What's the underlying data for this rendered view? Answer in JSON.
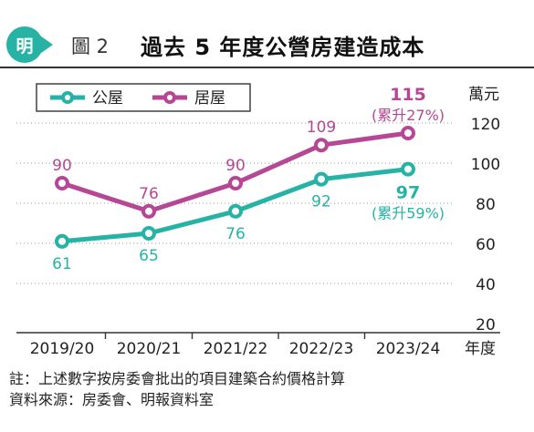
{
  "header": {
    "badge": "明",
    "figure_label": "圖 2",
    "title": "過去 5 年度公營房建造成本"
  },
  "chart_data": {
    "type": "line",
    "categories": [
      "2019/20",
      "2020/21",
      "2021/22",
      "2022/23",
      "2023/24"
    ],
    "xlabel": "年度",
    "ylabel": "萬元",
    "ylim": [
      20,
      120
    ],
    "yticks": [
      20,
      40,
      60,
      80,
      100,
      120
    ],
    "grid": true,
    "legend_position": "top-left",
    "series": [
      {
        "name": "公屋",
        "color": "#26b3a6",
        "values": [
          61,
          65,
          76,
          92,
          97
        ],
        "annotation": "(累升59%)"
      },
      {
        "name": "居屋",
        "color": "#b54795",
        "values": [
          90,
          76,
          90,
          109,
          115
        ],
        "annotation": "(累升27%)"
      }
    ]
  },
  "footnote": {
    "line1": "註：上述數字按房委會批出的項目建築合約價格計算",
    "line2": "資料來源：房委會、明報資料室"
  }
}
